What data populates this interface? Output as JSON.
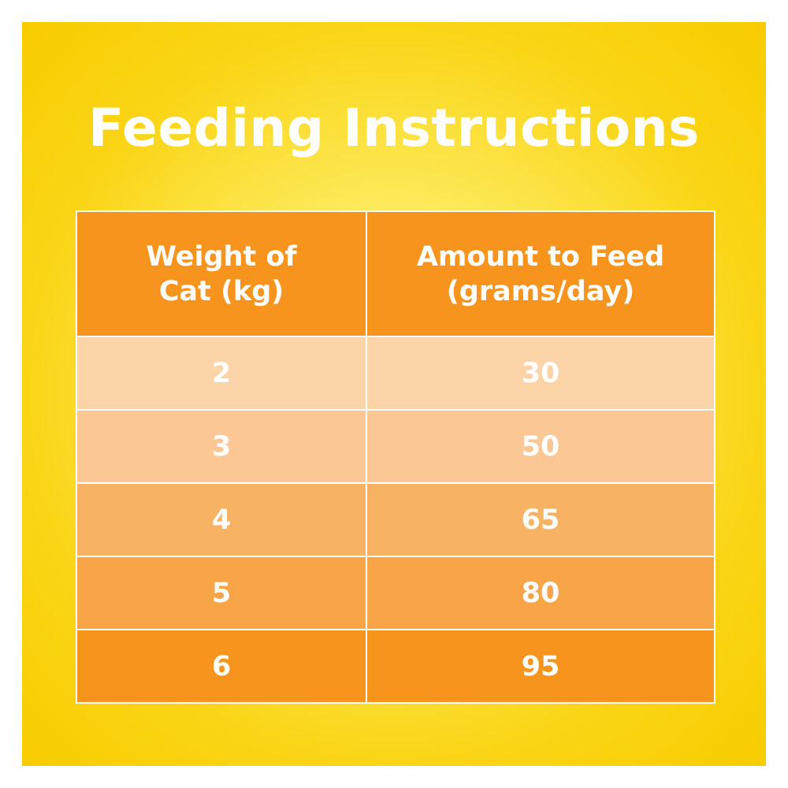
{
  "title": "Feeding Instructions",
  "table": {
    "headers": [
      {
        "line1": "Weight of",
        "line2": "Cat (kg)"
      },
      {
        "line1": "Amount to Feed",
        "line2": "(grams/day)"
      }
    ],
    "rows": [
      {
        "weight": "2",
        "amount": "30"
      },
      {
        "weight": "3",
        "amount": "50"
      },
      {
        "weight": "4",
        "amount": "65"
      },
      {
        "weight": "5",
        "amount": "80"
      },
      {
        "weight": "6",
        "amount": "95"
      }
    ]
  },
  "colors": {
    "background": "#f8cc00",
    "header": "#f7941e",
    "row_shades": [
      "#fcd4a8",
      "#fac795",
      "#f7b363",
      "#f7a547",
      "#f7941e"
    ],
    "text": "#ffffff"
  }
}
